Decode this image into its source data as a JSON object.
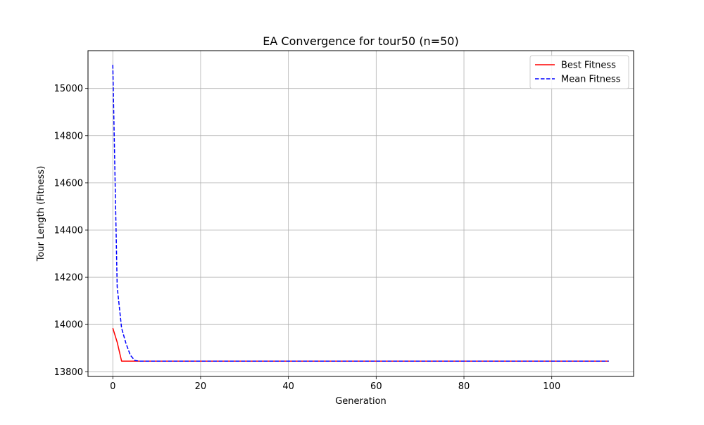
{
  "chart_data": {
    "type": "line",
    "title": "EA Convergence for tour50 (n=50)",
    "xlabel": "Generation",
    "ylabel": "Tour Length (Fitness)",
    "xlim": [
      -5.65,
      118.65
    ],
    "ylim": [
      13780,
      15160
    ],
    "xticks": [
      0,
      20,
      40,
      60,
      80,
      100
    ],
    "yticks": [
      13800,
      14000,
      14200,
      14400,
      14600,
      14800,
      15000
    ],
    "grid": true,
    "legend_position": "upper right",
    "series": [
      {
        "name": "Best Fitness",
        "color": "#ff0000",
        "style": "solid",
        "x": [
          0,
          1,
          2,
          3,
          4,
          5,
          113
        ],
        "y": [
          13985,
          13925,
          13845,
          13845,
          13845,
          13845,
          13845
        ]
      },
      {
        "name": "Mean Fitness",
        "color": "#0000ff",
        "style": "dashed",
        "x": [
          0,
          1,
          2,
          3,
          4,
          5,
          6,
          113
        ],
        "y": [
          15100,
          14160,
          13985,
          13920,
          13870,
          13848,
          13845,
          13845
        ]
      }
    ]
  }
}
